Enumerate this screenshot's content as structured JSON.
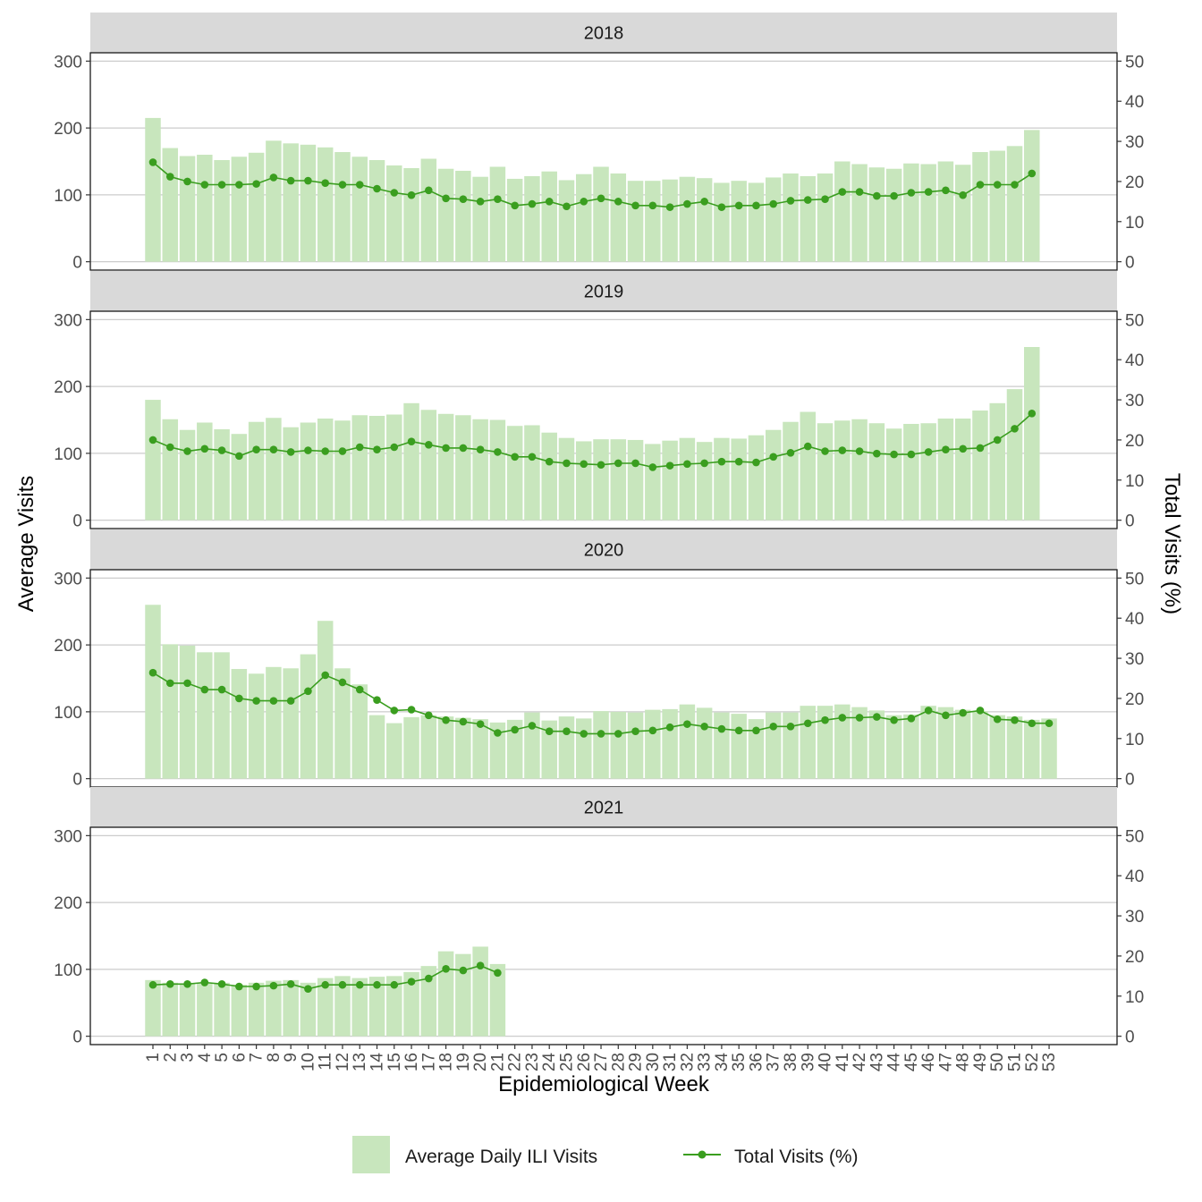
{
  "chart_data": {
    "type": "bar",
    "xlabel": "Epidemiological Week",
    "ylabel": "Average Visits",
    "y2label": "Total Visits (%)",
    "ylim": [
      0,
      300
    ],
    "y2lim": [
      0,
      50
    ],
    "y_ticks": [
      0,
      100,
      200,
      300
    ],
    "y2_ticks": [
      0,
      10,
      20,
      30,
      40,
      50
    ],
    "x_ticks": [
      "1",
      "2",
      "3",
      "4",
      "5",
      "6",
      "7",
      "8",
      "9",
      "10",
      "11",
      "12",
      "13",
      "14",
      "15",
      "16",
      "17",
      "18",
      "19",
      "20",
      "21",
      "22",
      "23",
      "24",
      "25",
      "26",
      "27",
      "28",
      "29",
      "30",
      "31",
      "32",
      "33",
      "34",
      "35",
      "36",
      "37",
      "38",
      "39",
      "40",
      "41",
      "42",
      "43",
      "44",
      "45",
      "46",
      "47",
      "48",
      "49",
      "50",
      "51",
      "52",
      "53"
    ],
    "grid": true,
    "legend_position": "bottom",
    "legend": [
      {
        "label": "Average Daily ILI Visits",
        "kind": "bar",
        "color": "#c8e6bd"
      },
      {
        "label": "Total Visits (%)",
        "kind": "line-point",
        "color": "#3a9e1f"
      }
    ],
    "bar_color": "#c8e6bd",
    "line_color": "#3a9e1f",
    "panels": [
      {
        "label": "2018",
        "bars": [
          215,
          170,
          158,
          160,
          152,
          157,
          163,
          181,
          177,
          175,
          171,
          164,
          157,
          152,
          144,
          140,
          154,
          139,
          136,
          127,
          142,
          124,
          128,
          135,
          122,
          131,
          142,
          132,
          121,
          121,
          123,
          127,
          125,
          118,
          121,
          118,
          126,
          132,
          128,
          132,
          150,
          146,
          141,
          139,
          147,
          146,
          150,
          145,
          164,
          166,
          173,
          197
        ],
        "pct": [
          24.8,
          21.2,
          20,
          19.2,
          19.2,
          19.2,
          19.4,
          21,
          20.2,
          20.2,
          19.6,
          19.2,
          19.2,
          18.2,
          17.2,
          16.6,
          17.8,
          15.8,
          15.6,
          15,
          15.6,
          14,
          14.4,
          15,
          13.8,
          15,
          15.8,
          15,
          14,
          14,
          13.6,
          14.4,
          15,
          13.6,
          14,
          14,
          14.4,
          15.2,
          15.4,
          15.6,
          17.4,
          17.4,
          16.4,
          16.4,
          17.2,
          17.4,
          17.8,
          16.6,
          19.2,
          19.2,
          19.2,
          22
        ]
      },
      {
        "label": "2019",
        "bars": [
          180,
          151,
          135,
          146,
          136,
          129,
          147,
          153,
          139,
          146,
          152,
          149,
          157,
          156,
          158,
          175,
          165,
          159,
          157,
          151,
          150,
          141,
          142,
          131,
          123,
          118,
          121,
          121,
          120,
          114,
          119,
          123,
          117,
          123,
          122,
          127,
          135,
          147,
          162,
          145,
          149,
          151,
          145,
          137,
          144,
          145,
          152,
          152,
          164,
          175,
          196,
          259
        ],
        "pct": [
          20,
          18.2,
          17.2,
          17.8,
          17.4,
          16,
          17.6,
          17.6,
          17,
          17.4,
          17.2,
          17.2,
          18.2,
          17.6,
          18.2,
          19.6,
          18.8,
          18,
          18,
          17.6,
          17,
          15.8,
          15.8,
          14.6,
          14.2,
          14,
          13.8,
          14.2,
          14.2,
          13.2,
          13.6,
          14,
          14.2,
          14.6,
          14.6,
          14.4,
          15.8,
          16.8,
          18.4,
          17.2,
          17.4,
          17.2,
          16.6,
          16.4,
          16.4,
          17,
          17.6,
          17.8,
          18,
          20,
          22.8,
          26.6
        ]
      },
      {
        "label": "2020",
        "bars": [
          260,
          201,
          199,
          189,
          189,
          164,
          157,
          167,
          165,
          186,
          236,
          165,
          141,
          95,
          83,
          92,
          95,
          93,
          91,
          89,
          84,
          88,
          99,
          87,
          93,
          90,
          101,
          100,
          99,
          103,
          104,
          111,
          106,
          99,
          97,
          89,
          99,
          99,
          109,
          109,
          111,
          107,
          102,
          95,
          96,
          109,
          107,
          103,
          101,
          95,
          93,
          88,
          90
        ],
        "pct": [
          26.4,
          23.8,
          23.8,
          22.2,
          22.2,
          20,
          19.4,
          19.4,
          19.4,
          21.8,
          25.8,
          24,
          22.2,
          19.6,
          17,
          17.2,
          15.8,
          14.6,
          14.2,
          13.6,
          11.4,
          12.2,
          13.2,
          11.8,
          11.8,
          11.2,
          11.2,
          11.2,
          11.8,
          12,
          12.8,
          13.6,
          13,
          12.4,
          12,
          12,
          13,
          13,
          13.8,
          14.6,
          15.2,
          15.2,
          15.4,
          14.6,
          15,
          17,
          15.8,
          16.4,
          17,
          14.8,
          14.6,
          13.8,
          13.8
        ]
      },
      {
        "label": "2021",
        "bars": [
          84,
          80,
          79,
          79,
          80,
          77,
          80,
          83,
          84,
          80,
          87,
          90,
          87,
          89,
          90,
          96,
          105,
          127,
          123,
          134,
          108
        ],
        "pct": [
          12.8,
          13,
          13,
          13.4,
          13,
          12.4,
          12.4,
          12.6,
          13,
          11.8,
          12.8,
          12.8,
          12.8,
          12.8,
          12.8,
          13.6,
          14.4,
          16.8,
          16.4,
          17.6,
          15.8
        ]
      }
    ]
  }
}
